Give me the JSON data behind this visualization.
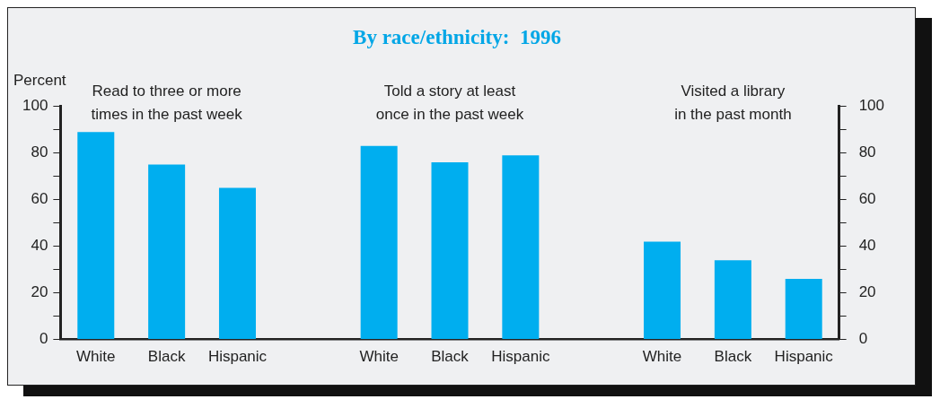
{
  "chart_data": {
    "type": "bar",
    "title": "By race/ethnicity:  1996",
    "ylabel": "Percent",
    "categories": [
      "White",
      "Black",
      "Hispanic",
      null,
      "White",
      "Black",
      "Hispanic",
      null,
      "White",
      "Black",
      "Hispanic"
    ],
    "values": [
      89,
      75,
      65,
      null,
      83,
      76,
      79,
      null,
      42,
      34,
      26
    ],
    "color": "#00aeef",
    "ylim": [
      0,
      100
    ],
    "yticks": [
      0,
      {
        "value": 10,
        "label": null
      },
      20,
      {
        "value": 30,
        "label": null
      },
      40,
      {
        "value": 50,
        "label": null
      },
      60,
      {
        "value": 70,
        "label": null
      },
      80,
      {
        "value": 90,
        "label": null
      },
      100
    ],
    "y2lim": [
      0,
      100
    ],
    "y2ticks": [
      0,
      {
        "value": 10,
        "label": null
      },
      20,
      {
        "value": 30,
        "label": null
      },
      40,
      {
        "value": 50,
        "label": null
      },
      60,
      {
        "value": 70,
        "label": null
      },
      80,
      {
        "value": 90,
        "label": null
      },
      100
    ],
    "annotations": [
      "Read to three or more\ntimes in the past week",
      "Told a story at least\nonce in the past week",
      "Visited a library\nin the past month"
    ],
    "grid": false,
    "legend": false
  }
}
